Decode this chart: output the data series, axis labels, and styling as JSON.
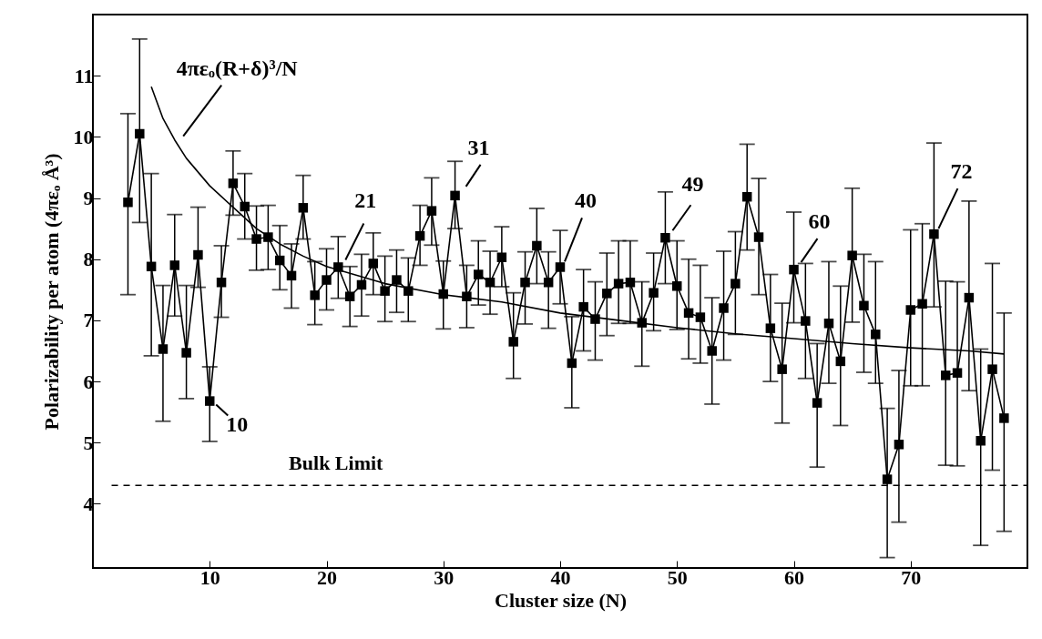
{
  "chart_data": {
    "type": "line",
    "xlabel": "Cluster size (N)",
    "ylabel": "Polarizability per atom (4πεₒ Å³)",
    "xlim": [
      0,
      80
    ],
    "ylim": [
      2.95,
      12.0
    ],
    "xticks": [
      10,
      20,
      30,
      40,
      50,
      60,
      70
    ],
    "yticks": [
      4,
      5,
      6,
      7,
      8,
      9,
      10,
      11
    ],
    "grid": false,
    "x": [
      3,
      4,
      5,
      6,
      7,
      8,
      9,
      10,
      11,
      12,
      13,
      14,
      15,
      16,
      17,
      18,
      19,
      20,
      21,
      22,
      23,
      24,
      25,
      26,
      27,
      28,
      29,
      30,
      31,
      32,
      33,
      34,
      35,
      36,
      37,
      38,
      39,
      40,
      41,
      42,
      43,
      44,
      45,
      46,
      47,
      48,
      49,
      50,
      51,
      52,
      53,
      54,
      55,
      56,
      57,
      58,
      59,
      60,
      61,
      62,
      63,
      64,
      65,
      66,
      67,
      68,
      69,
      70,
      71,
      72,
      73,
      74,
      75,
      76,
      77,
      78
    ],
    "series": [
      {
        "color": "#000000",
        "marker": "square",
        "line_style": "solid",
        "values": [
          8.93,
          10.05,
          7.88,
          6.53,
          7.9,
          6.47,
          8.07,
          5.68,
          7.62,
          9.24,
          8.86,
          8.33,
          8.36,
          7.98,
          7.73,
          8.84,
          7.41,
          7.66,
          7.87,
          7.39,
          7.58,
          7.93,
          7.48,
          7.66,
          7.48,
          8.38,
          8.79,
          7.43,
          9.04,
          7.39,
          7.75,
          7.62,
          8.03,
          6.65,
          7.62,
          8.22,
          7.62,
          7.87,
          6.3,
          7.22,
          7.02,
          7.44,
          7.6,
          7.62,
          6.96,
          7.45,
          8.35,
          7.56,
          7.12,
          7.05,
          6.5,
          7.2,
          7.6,
          9.02,
          8.36,
          6.87,
          6.2,
          7.83,
          6.99,
          5.65,
          6.95,
          6.33,
          8.06,
          7.24,
          6.77,
          4.4,
          4.97,
          7.17,
          7.27,
          8.41,
          6.1,
          6.14,
          7.37,
          5.03,
          6.2,
          5.4
        ],
        "errors": [
          [
            7.42,
            10.38
          ],
          [
            8.6,
            11.6
          ],
          [
            6.42,
            9.4
          ],
          [
            5.35,
            7.57
          ],
          [
            7.07,
            8.73
          ],
          [
            5.72,
            7.57
          ],
          [
            7.54,
            8.85
          ],
          [
            5.02,
            6.24
          ],
          [
            7.05,
            8.22
          ],
          [
            8.72,
            9.77
          ],
          [
            8.33,
            9.4
          ],
          [
            7.82,
            8.87
          ],
          [
            7.83,
            8.88
          ],
          [
            7.5,
            8.55
          ],
          [
            7.2,
            8.25
          ],
          [
            8.33,
            9.37
          ],
          [
            6.93,
            7.96
          ],
          [
            7.17,
            8.17
          ],
          [
            7.36,
            8.37
          ],
          [
            6.9,
            7.88
          ],
          [
            7.07,
            8.08
          ],
          [
            7.42,
            8.43
          ],
          [
            6.98,
            8.05
          ],
          [
            7.13,
            8.15
          ],
          [
            6.98,
            8.02
          ],
          [
            7.9,
            8.88
          ],
          [
            8.23,
            9.33
          ],
          [
            6.86,
            7.97
          ],
          [
            8.5,
            9.6
          ],
          [
            6.88,
            7.9
          ],
          [
            7.25,
            8.3
          ],
          [
            7.1,
            8.13
          ],
          [
            7.55,
            8.53
          ],
          [
            6.05,
            7.45
          ],
          [
            6.94,
            8.12
          ],
          [
            7.6,
            8.83
          ],
          [
            6.87,
            8.12
          ],
          [
            7.27,
            8.47
          ],
          [
            5.57,
            7.06
          ],
          [
            6.5,
            7.83
          ],
          [
            6.35,
            7.63
          ],
          [
            6.75,
            8.1
          ],
          [
            6.95,
            8.3
          ],
          [
            6.95,
            8.3
          ],
          [
            6.25,
            7.63
          ],
          [
            6.83,
            8.1
          ],
          [
            7.6,
            9.1
          ],
          [
            6.85,
            8.3
          ],
          [
            6.37,
            8.0
          ],
          [
            6.3,
            7.9
          ],
          [
            5.63,
            7.37
          ],
          [
            6.35,
            8.13
          ],
          [
            6.77,
            8.45
          ],
          [
            8.15,
            9.88
          ],
          [
            7.42,
            9.32
          ],
          [
            6.0,
            7.75
          ],
          [
            5.32,
            7.28
          ],
          [
            6.96,
            8.77
          ],
          [
            6.05,
            7.93
          ],
          [
            4.6,
            6.62
          ],
          [
            5.97,
            7.96
          ],
          [
            5.28,
            7.56
          ],
          [
            6.97,
            9.16
          ],
          [
            6.15,
            8.08
          ],
          [
            5.97,
            7.96
          ],
          [
            3.12,
            5.56
          ],
          [
            3.7,
            6.18
          ],
          [
            5.93,
            8.48
          ],
          [
            5.93,
            8.58
          ],
          [
            7.22,
            9.9
          ],
          [
            4.63,
            7.64
          ],
          [
            4.62,
            7.63
          ],
          [
            5.85,
            8.95
          ],
          [
            3.32,
            6.53
          ],
          [
            4.55,
            7.93
          ],
          [
            3.55,
            7.12
          ]
        ]
      },
      {
        "color": "#000000",
        "marker": "none",
        "line_style": "solid",
        "x": [
          5,
          6,
          7,
          8,
          10,
          12,
          14,
          16,
          18,
          20,
          25,
          30,
          35,
          40,
          45,
          50,
          55,
          60,
          65,
          70,
          75,
          78
        ],
        "values": [
          10.82,
          10.3,
          9.95,
          9.65,
          9.2,
          8.85,
          8.5,
          8.25,
          8.05,
          7.88,
          7.6,
          7.42,
          7.3,
          7.12,
          7.0,
          6.88,
          6.78,
          6.7,
          6.62,
          6.55,
          6.5,
          6.45
        ]
      }
    ],
    "ref_lines": [
      {
        "axis": "y",
        "value": 4.3,
        "label": "Bulk Limit",
        "color": "#000000",
        "line_style": "dashed"
      }
    ],
    "annotations": [
      {
        "text": "4πεₒ(R+δ)³/N",
        "x": 7.5,
        "y": 9.95
      },
      {
        "text": "10",
        "x": 10,
        "y": 5.68
      },
      {
        "text": "21",
        "x": 21,
        "y": 7.87
      },
      {
        "text": "31",
        "x": 31,
        "y": 9.04
      },
      {
        "text": "40",
        "x": 40,
        "y": 7.87
      },
      {
        "text": "49",
        "x": 49,
        "y": 8.35
      },
      {
        "text": "60",
        "x": 60,
        "y": 7.83
      },
      {
        "text": "72",
        "x": 72,
        "y": 8.41
      }
    ]
  }
}
